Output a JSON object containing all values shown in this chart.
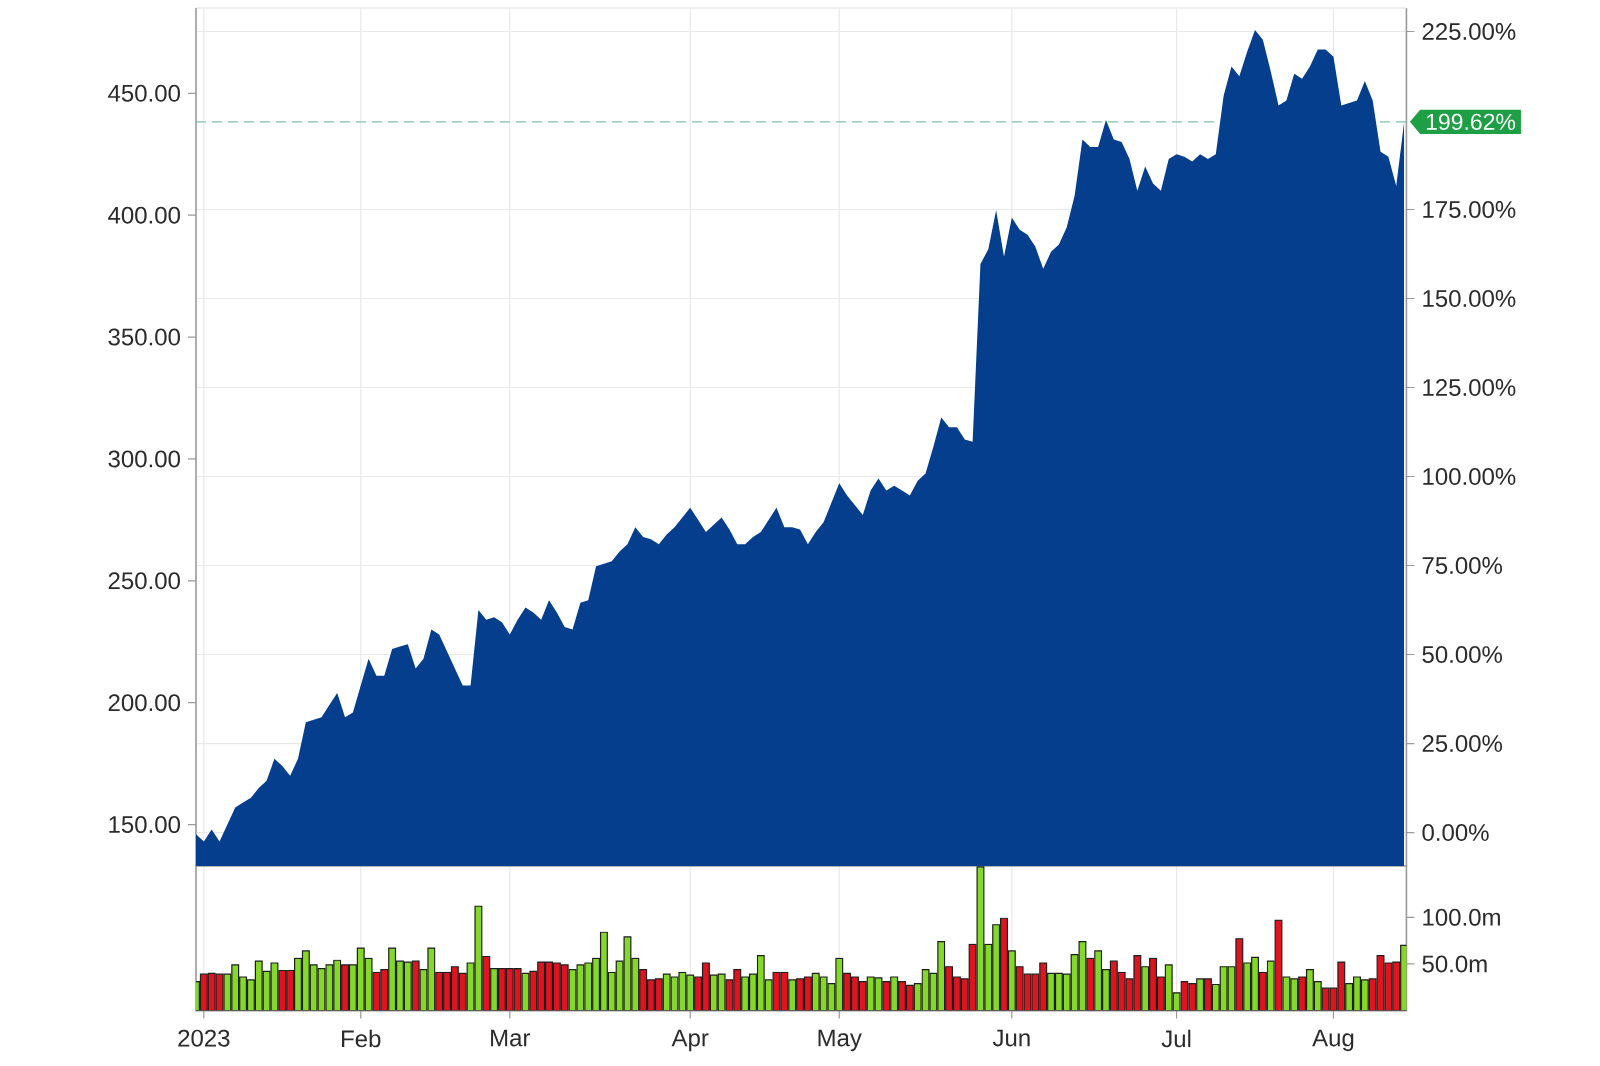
{
  "chart_data": [
    {
      "type": "area",
      "color": "#043e8c",
      "categories": [
        null,
        null,
        null,
        null,
        null,
        null,
        null,
        null,
        null,
        null,
        null,
        null,
        null,
        null,
        null,
        null,
        null,
        null,
        null,
        null,
        null,
        null,
        null,
        null,
        null,
        null,
        null,
        null,
        null,
        null,
        null,
        null,
        null,
        null,
        null,
        null,
        null,
        null,
        null,
        null,
        null,
        null,
        null,
        null,
        null,
        null,
        null,
        null,
        null,
        null,
        null,
        null,
        null,
        null,
        null,
        null,
        null,
        null,
        null,
        null,
        null,
        null,
        null,
        null,
        null,
        null,
        null,
        null,
        null,
        null,
        null,
        null,
        null,
        null,
        null,
        null,
        null,
        null,
        null,
        null,
        null,
        null,
        null,
        null,
        null,
        null,
        null,
        null,
        null,
        null,
        null,
        null,
        null,
        null,
        null,
        null,
        null,
        null,
        null,
        null,
        null,
        null,
        null,
        null,
        null,
        null,
        null,
        null,
        null,
        null,
        null,
        null,
        null,
        null,
        null,
        null,
        null,
        null,
        null,
        null,
        null,
        null,
        null,
        null,
        null,
        null,
        null,
        null,
        null,
        null,
        null,
        null,
        null,
        null,
        null,
        null,
        null,
        null,
        null,
        null,
        null,
        null,
        null,
        null,
        null,
        null,
        null,
        null,
        null,
        null,
        null,
        null,
        null,
        null,
        null
      ],
      "values": [
        146,
        143,
        148,
        143,
        150,
        157,
        159,
        161,
        165,
        168,
        177,
        174,
        170,
        177,
        192,
        193,
        194,
        199,
        204,
        194,
        196,
        207,
        218,
        211,
        211,
        222,
        223,
        224,
        214,
        218,
        230,
        228,
        221,
        214,
        207,
        207,
        238,
        234,
        235,
        233,
        228,
        234,
        239,
        237,
        234,
        242,
        237,
        231,
        230,
        241,
        242,
        256,
        257,
        258,
        262,
        265,
        272,
        268,
        267,
        265,
        269,
        272,
        276,
        280,
        275,
        270,
        273,
        276,
        271,
        265,
        265,
        268,
        270,
        275,
        280,
        272,
        272,
        271,
        265,
        270,
        274,
        282,
        290,
        285,
        281,
        277,
        287,
        292,
        287,
        289,
        287,
        285,
        291,
        294,
        305,
        317,
        313,
        313,
        308,
        307,
        380,
        386,
        402,
        383,
        399,
        394,
        392,
        387,
        378,
        385,
        388,
        395,
        408,
        431,
        428,
        428,
        439,
        431,
        430,
        423,
        410,
        420,
        413,
        410,
        423,
        425,
        424,
        422,
        425,
        423,
        425,
        449,
        461,
        457,
        467,
        476,
        472,
        459,
        445,
        447,
        458,
        456,
        461,
        468,
        468,
        465,
        445,
        446,
        447,
        455,
        447,
        426,
        424,
        412,
        438
      ],
      "ylim": [
        133,
        485
      ],
      "yticks": [
        {
          "value": 150,
          "label": "150.00"
        },
        {
          "value": 200,
          "label": "200.00"
        },
        {
          "value": 250,
          "label": "250.00"
        },
        {
          "value": 300,
          "label": "300.00"
        },
        {
          "value": 350,
          "label": "350.00"
        },
        {
          "value": 400,
          "label": "400.00"
        },
        {
          "value": 450,
          "label": "450.00"
        }
      ],
      "y2lim": [
        -9.4,
        231.6
      ],
      "y2ticks": [
        {
          "value": 0,
          "label": "0.00%"
        },
        {
          "value": 25,
          "label": "25.00%"
        },
        {
          "value": 50,
          "label": "50.00%"
        },
        {
          "value": 75,
          "label": "75.00%"
        },
        {
          "value": 100,
          "label": "100.00%"
        },
        {
          "value": 125,
          "label": "125.00%"
        },
        {
          "value": 150,
          "label": "150.00%"
        },
        {
          "value": 175,
          "label": "175.00%"
        },
        {
          "value": 225,
          "label": "225.00%"
        }
      ],
      "ref_lines": [
        {
          "axis": "y2",
          "value": 199.62,
          "label": "199.62%",
          "color": "#9fd3bf",
          "line_style": "dashed"
        }
      ],
      "grid": true,
      "tick_labels": "y"
    },
    {
      "type": "bar",
      "categories": [
        null,
        "2023",
        null,
        null,
        null,
        null,
        null,
        null,
        null,
        null,
        null,
        null,
        null,
        null,
        null,
        null,
        null,
        null,
        null,
        null,
        null,
        "Feb",
        null,
        null,
        null,
        null,
        null,
        null,
        null,
        null,
        null,
        null,
        null,
        null,
        null,
        null,
        null,
        null,
        null,
        null,
        "Mar",
        null,
        null,
        null,
        null,
        null,
        null,
        null,
        null,
        null,
        null,
        null,
        null,
        null,
        null,
        null,
        null,
        null,
        null,
        null,
        null,
        null,
        null,
        "Apr",
        null,
        null,
        null,
        null,
        null,
        null,
        null,
        null,
        null,
        null,
        null,
        null,
        null,
        null,
        null,
        null,
        null,
        null,
        "May",
        null,
        null,
        null,
        null,
        null,
        null,
        null,
        null,
        null,
        null,
        null,
        null,
        null,
        null,
        null,
        null,
        null,
        null,
        null,
        null,
        null,
        "Jun",
        null,
        null,
        null,
        null,
        null,
        null,
        null,
        null,
        null,
        null,
        null,
        null,
        null,
        null,
        null,
        null,
        null,
        null,
        null,
        null,
        "Jul",
        null,
        null,
        null,
        null,
        null,
        null,
        null,
        null,
        null,
        null,
        null,
        null,
        null,
        null,
        null,
        null,
        null,
        null,
        null,
        "Aug",
        null,
        null,
        null,
        null,
        null,
        null,
        null,
        null,
        null
      ],
      "values": [
        31,
        39,
        40,
        39,
        39,
        49,
        36,
        33,
        53,
        42,
        51,
        43,
        43,
        56,
        64,
        49,
        45,
        49,
        54,
        49,
        49,
        67,
        56,
        41,
        44,
        67,
        53,
        52,
        53,
        44,
        67,
        41,
        41,
        47,
        40,
        51,
        112,
        58,
        45,
        45,
        45,
        45,
        40,
        42,
        52,
        52,
        51,
        49,
        44,
        49,
        51,
        56,
        84,
        41,
        53,
        79,
        56,
        44,
        33,
        34,
        39,
        36,
        41,
        38,
        36,
        51,
        38,
        39,
        33,
        44,
        36,
        39,
        59,
        33,
        41,
        41,
        33,
        34,
        36,
        40,
        36,
        29,
        56,
        40,
        36,
        31,
        36,
        35,
        31,
        36,
        31,
        27,
        29,
        44,
        40,
        74,
        47,
        36,
        34,
        71,
        154,
        71,
        92,
        99,
        64,
        47,
        39,
        39,
        51,
        40,
        40,
        39,
        60,
        74,
        56,
        64,
        44,
        53,
        41,
        34,
        59,
        47,
        56,
        36,
        49,
        19,
        31,
        29,
        34,
        34,
        28,
        47,
        47,
        77,
        51,
        57,
        41,
        53,
        97,
        36,
        34,
        36,
        44,
        31,
        24,
        24,
        52,
        29,
        36,
        33,
        34,
        59,
        51,
        52,
        70
      ],
      "colors": [
        "#84d827",
        "#e0141e",
        "#e0141e",
        "#e0141e",
        "#84d827",
        "#84d827",
        "#84d827",
        "#84d827",
        "#84d827",
        "#84d827",
        "#84d827",
        "#e0141e",
        "#e0141e",
        "#84d827",
        "#84d827",
        "#84d827",
        "#84d827",
        "#84d827",
        "#84d827",
        "#e0141e",
        "#84d827",
        "#84d827",
        "#84d827",
        "#e0141e",
        "#e0141e",
        "#84d827",
        "#84d827",
        "#84d827",
        "#e0141e",
        "#84d827",
        "#84d827",
        "#e0141e",
        "#e0141e",
        "#e0141e",
        "#e0141e",
        "#84d827",
        "#84d827",
        "#e0141e",
        "#84d827",
        "#e0141e",
        "#e0141e",
        "#e0141e",
        "#84d827",
        "#e0141e",
        "#e0141e",
        "#e0141e",
        "#e0141e",
        "#e0141e",
        "#84d827",
        "#84d827",
        "#84d827",
        "#84d827",
        "#84d827",
        "#84d827",
        "#84d827",
        "#84d827",
        "#84d827",
        "#e0141e",
        "#e0141e",
        "#e0141e",
        "#84d827",
        "#84d827",
        "#84d827",
        "#84d827",
        "#e0141e",
        "#e0141e",
        "#84d827",
        "#84d827",
        "#e0141e",
        "#e0141e",
        "#84d827",
        "#84d827",
        "#84d827",
        "#84d827",
        "#e0141e",
        "#e0141e",
        "#84d827",
        "#e0141e",
        "#e0141e",
        "#84d827",
        "#84d827",
        "#84d827",
        "#84d827",
        "#e0141e",
        "#e0141e",
        "#e0141e",
        "#84d827",
        "#84d827",
        "#e0141e",
        "#84d827",
        "#e0141e",
        "#e0141e",
        "#84d827",
        "#84d827",
        "#84d827",
        "#84d827",
        "#e0141e",
        "#e0141e",
        "#e0141e",
        "#e0141e",
        "#84d827",
        "#84d827",
        "#84d827",
        "#e0141e",
        "#84d827",
        "#e0141e",
        "#e0141e",
        "#e0141e",
        "#e0141e",
        "#84d827",
        "#84d827",
        "#84d827",
        "#84d827",
        "#84d827",
        "#e0141e",
        "#84d827",
        "#84d827",
        "#e0141e",
        "#e0141e",
        "#e0141e",
        "#e0141e",
        "#84d827",
        "#e0141e",
        "#e0141e",
        "#84d827",
        "#84d827",
        "#e0141e",
        "#e0141e",
        "#84d827",
        "#e0141e",
        "#84d827",
        "#84d827",
        "#84d827",
        "#e0141e",
        "#84d827",
        "#84d827",
        "#e0141e",
        "#84d827",
        "#e0141e",
        "#84d827",
        "#84d827",
        "#e0141e",
        "#84d827",
        "#84d827",
        "#e0141e",
        "#e0141e",
        "#e0141e",
        "#84d827",
        "#84d827",
        "#84d827",
        "#e0141e",
        "#e0141e",
        "#e0141e",
        "#e0141e",
        "#84d827"
      ],
      "ylim": [
        0,
        155
      ],
      "yticks": [
        {
          "value": 50,
          "label": "50.0m"
        },
        {
          "value": 100,
          "label": "100.0m"
        }
      ],
      "grid": "x"
    }
  ]
}
